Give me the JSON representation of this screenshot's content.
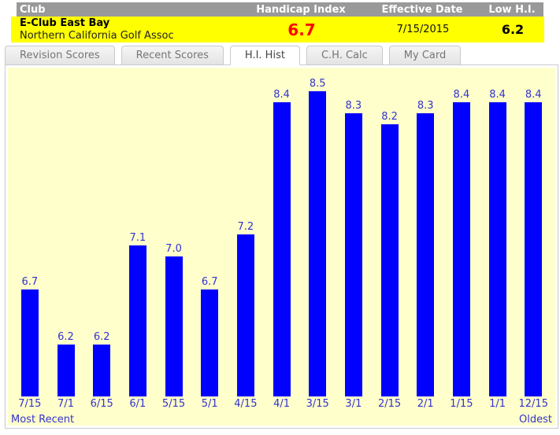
{
  "header": {
    "columns": [
      "Club",
      "Handicap Index",
      "Effective Date",
      "Low H.I."
    ],
    "club_name": "E-Club East Bay",
    "club_assoc": "Northern California Golf Assoc",
    "handicap_index": "6.7",
    "effective_date": "7/15/2015",
    "low_hi": "6.2"
  },
  "tabs": [
    {
      "label": "Revision Scores",
      "active": false
    },
    {
      "label": "Recent Scores",
      "active": false
    },
    {
      "label": "H.I. Hist",
      "active": true
    },
    {
      "label": "C.H. Calc",
      "active": false
    },
    {
      "label": "My Card",
      "active": false
    }
  ],
  "chart_data": {
    "type": "bar",
    "categories": [
      "7/15",
      "7/1",
      "6/15",
      "6/1",
      "5/15",
      "5/1",
      "4/15",
      "4/1",
      "3/15",
      "3/1",
      "2/15",
      "2/1",
      "1/15",
      "1/1",
      "12/15"
    ],
    "values": [
      6.7,
      6.2,
      6.2,
      7.1,
      7.0,
      6.7,
      7.2,
      8.4,
      8.5,
      8.3,
      8.2,
      8.3,
      8.4,
      8.4,
      8.4
    ],
    "value_labels": [
      "6.7",
      "6.2",
      "6.2",
      "7.1",
      "7.0",
      "6.7",
      "7.2",
      "8.4",
      "8.5",
      "8.3",
      "8.2",
      "8.3",
      "8.4",
      "8.4",
      "8.4"
    ],
    "title": "",
    "xlabel": "",
    "ylabel": "",
    "ylim": [
      5.73,
      8.6
    ],
    "grid": false,
    "legend": false,
    "footer_left": "Most Recent",
    "footer_right": "Oldest",
    "bar_color": "#0000ff",
    "label_color": "#3333cc",
    "background": "#ffffcc"
  },
  "colors": {
    "header_bar": "#999999",
    "club_row": "#ffff00",
    "handicap_red": "#ff0000",
    "chart_bg": "#ffffcc",
    "bar_blue": "#0000ff",
    "chart_text_blue": "#3333cc"
  }
}
